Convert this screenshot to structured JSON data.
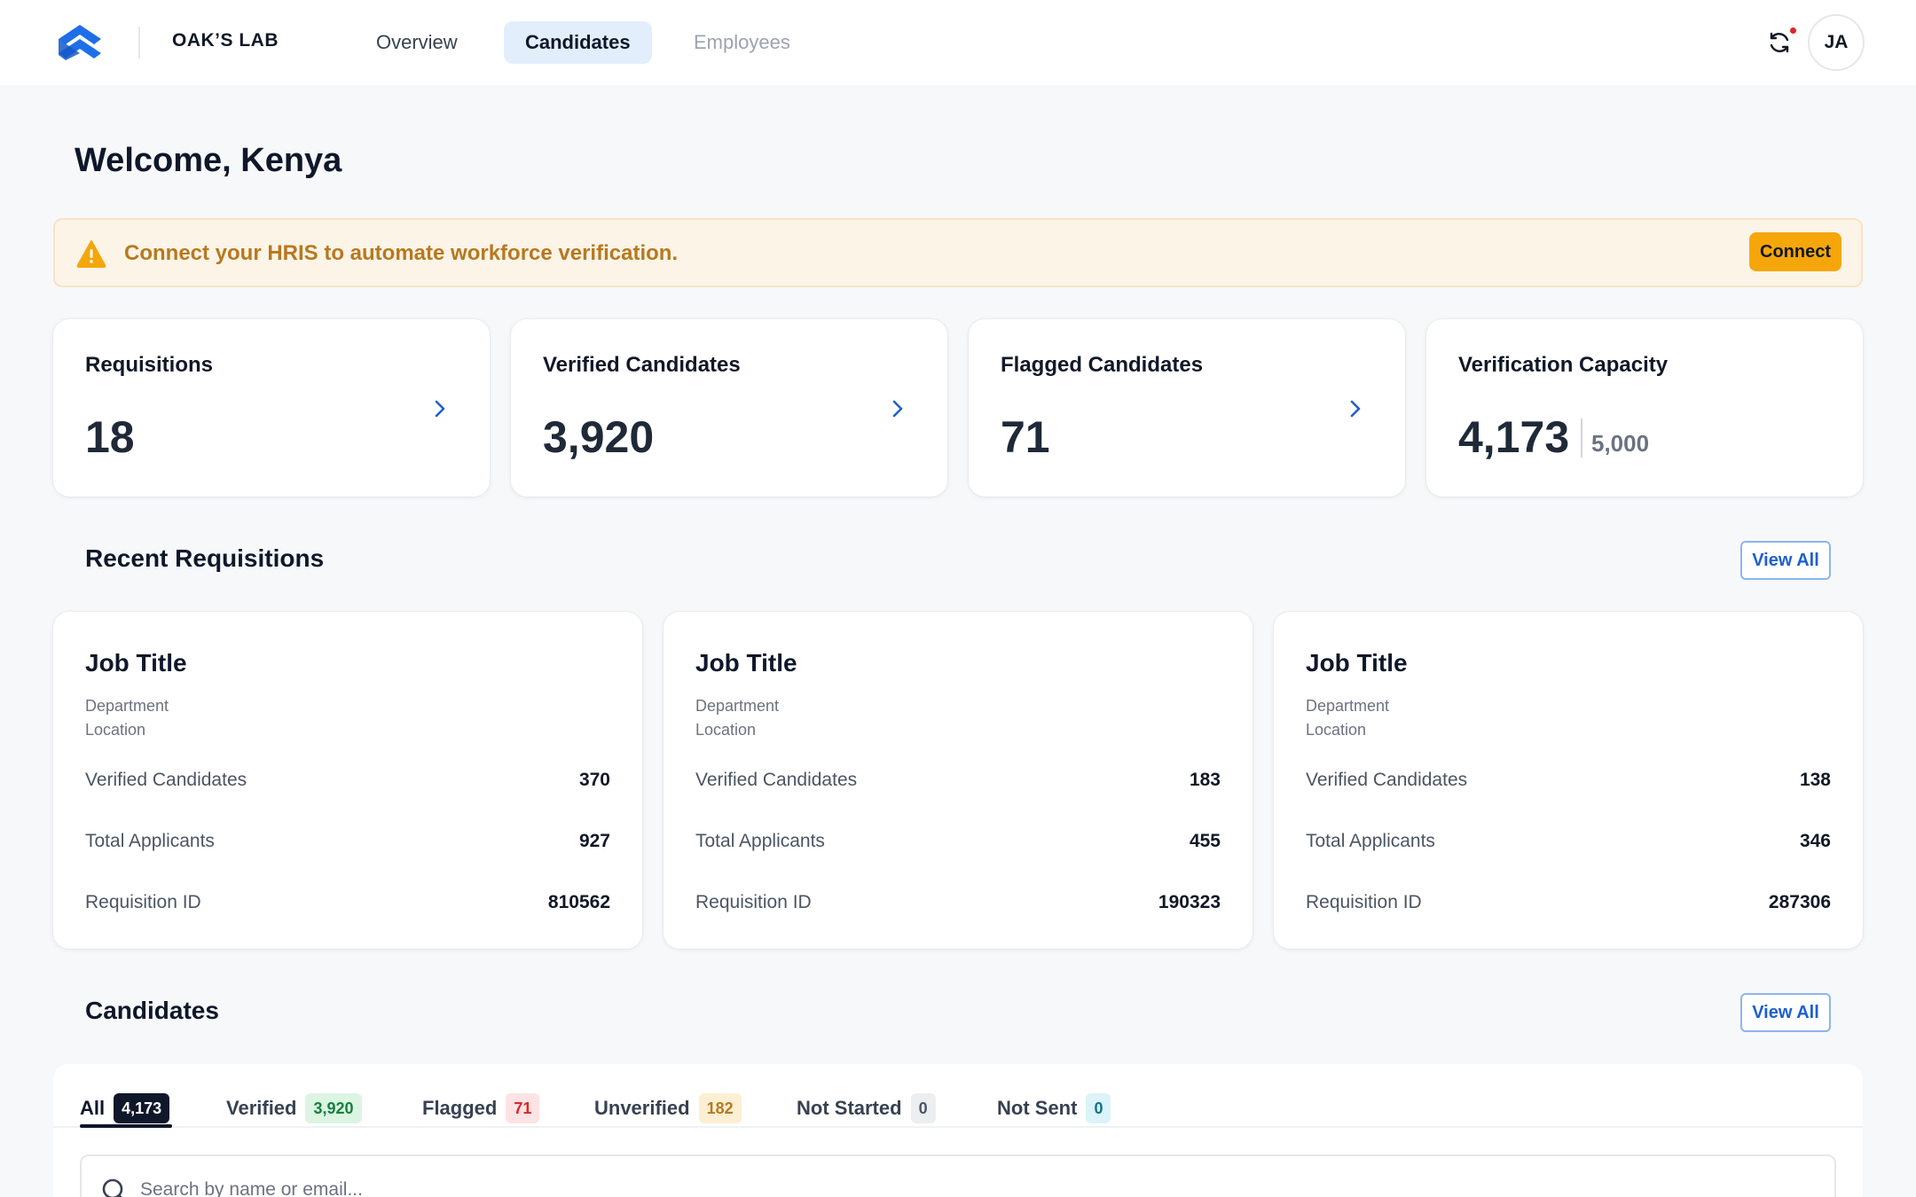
{
  "header": {
    "company": "OAK’S LAB",
    "tabs": [
      {
        "label": "Overview"
      },
      {
        "label": "Candidates"
      },
      {
        "label": "Employees"
      }
    ],
    "avatar_initials": "JA"
  },
  "welcome": "Welcome, Kenya",
  "banner": {
    "message": "Connect your HRIS to automate workforce verification.",
    "button": "Connect"
  },
  "stats": [
    {
      "label": "Requisitions",
      "value": "18"
    },
    {
      "label": "Verified Candidates",
      "value": "3,920"
    },
    {
      "label": "Flagged Candidates",
      "value": "71"
    },
    {
      "label": "Verification Capacity",
      "value": "4,173",
      "max": "5,000"
    }
  ],
  "recent_requisitions": {
    "title": "Recent Requisitions",
    "view_all": "View All",
    "cards": [
      {
        "job_title": "Job Title",
        "department": "Department",
        "location": "Location",
        "rows": [
          {
            "label": "Verified Candidates",
            "value": "370"
          },
          {
            "label": "Total Applicants",
            "value": "927"
          },
          {
            "label": "Requisition ID",
            "value": "810562"
          }
        ]
      },
      {
        "job_title": "Job Title",
        "department": "Department",
        "location": "Location",
        "rows": [
          {
            "label": "Verified Candidates",
            "value": "183"
          },
          {
            "label": "Total Applicants",
            "value": "455"
          },
          {
            "label": "Requisition ID",
            "value": "190323"
          }
        ]
      },
      {
        "job_title": "Job Title",
        "department": "Department",
        "location": "Location",
        "rows": [
          {
            "label": "Verified Candidates",
            "value": "138"
          },
          {
            "label": "Total Applicants",
            "value": "346"
          },
          {
            "label": "Requisition ID",
            "value": "287306"
          }
        ]
      }
    ]
  },
  "candidates": {
    "title": "Candidates",
    "view_all": "View All",
    "tabs": [
      {
        "label": "All",
        "count": "4,173"
      },
      {
        "label": "Verified",
        "count": "3,920"
      },
      {
        "label": "Flagged",
        "count": "71"
      },
      {
        "label": "Unverified",
        "count": "182"
      },
      {
        "label": "Not Started",
        "count": "0"
      },
      {
        "label": "Not Sent",
        "count": "0"
      }
    ],
    "search_placeholder": "Search by name or email..."
  },
  "colors": {
    "accent": "#1d5fd1",
    "warning": "#b7791f",
    "connect_button": "#f5a60b",
    "verified": "#15803d",
    "flagged": "#dc2626",
    "unverified": "#b7791f"
  }
}
